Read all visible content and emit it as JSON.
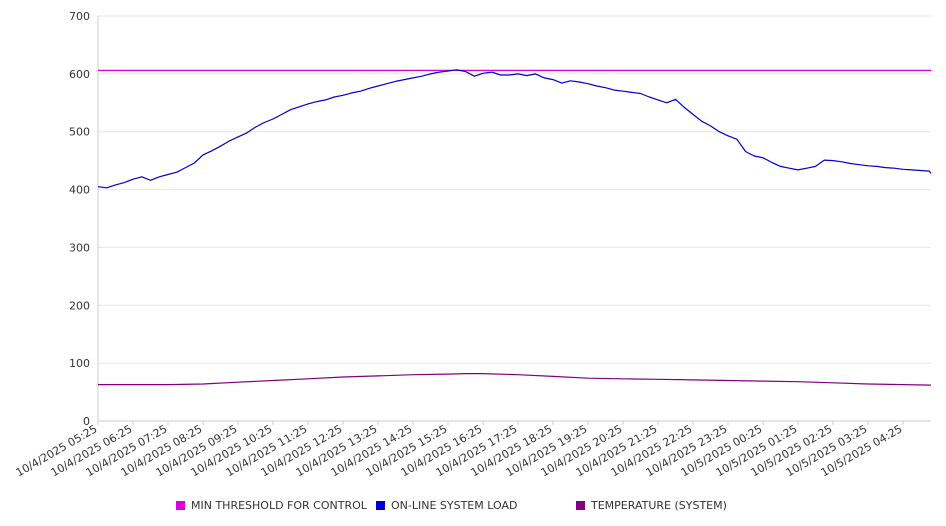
{
  "chart_data": {
    "type": "line",
    "title": "",
    "xlabel": "",
    "ylabel": "",
    "ylim": [
      0,
      700
    ],
    "yticks": [
      0,
      100,
      200,
      300,
      400,
      500,
      600,
      700
    ],
    "grid": true,
    "legend_position": "bottom",
    "x_tick_labels": [
      "10/4/2025 05:25",
      "10/4/2025 06:25",
      "10/4/2025 07:25",
      "10/4/2025 08:25",
      "10/4/2025 09:25",
      "10/4/2025 10:25",
      "10/4/2025 11:25",
      "10/4/2025 12:25",
      "10/4/2025 13:25",
      "10/4/2025 14:25",
      "10/4/2025 15:25",
      "10/4/2025 16:25",
      "10/4/2025 17:25",
      "10/4/2025 18:25",
      "10/4/2025 19:25",
      "10/4/2025 20:25",
      "10/4/2025 21:25",
      "10/4/2025 22:25",
      "10/4/2025 23:25",
      "10/5/2025 00:25",
      "10/5/2025 01:25",
      "10/5/2025 02:25",
      "10/5/2025 03:25",
      "10/5/2025 04:25"
    ],
    "x_tick_hours": [
      0,
      1,
      2,
      3,
      4,
      5,
      6,
      7,
      8,
      9,
      10,
      11,
      12,
      13,
      14,
      15,
      16,
      17,
      18,
      19,
      20,
      21,
      22,
      23
    ],
    "x_end_hour": 23.8,
    "series": [
      {
        "name": "MIN THRESHOLD FOR CONTROL",
        "color": "#dd00dd",
        "x_hours": [
          0,
          23.8
        ],
        "values": [
          606,
          606
        ]
      },
      {
        "name": "ON-LINE SYSTEM LOAD",
        "color": "#0000cc",
        "x_hours": [
          0,
          0.25,
          0.5,
          0.75,
          1,
          1.25,
          1.5,
          1.75,
          2,
          2.25,
          2.5,
          2.75,
          3,
          3.25,
          3.5,
          3.75,
          4,
          4.25,
          4.5,
          4.75,
          5,
          5.25,
          5.5,
          5.75,
          6,
          6.25,
          6.5,
          6.75,
          7,
          7.25,
          7.5,
          7.75,
          8,
          8.25,
          8.5,
          8.75,
          9,
          9.25,
          9.5,
          9.75,
          10,
          10.25,
          10.5,
          10.75,
          11,
          11.25,
          11.5,
          11.75,
          12,
          12.25,
          12.5,
          12.75,
          13,
          13.25,
          13.5,
          13.75,
          14,
          14.25,
          14.5,
          14.75,
          15,
          15.25,
          15.5,
          15.75,
          16,
          16.25,
          16.5,
          16.75,
          17,
          17.25,
          17.5,
          17.75,
          18,
          18.25,
          18.5,
          18.55,
          18.75,
          19,
          19.25,
          19.5,
          19.75,
          20,
          20.25,
          20.5,
          20.75,
          21,
          21.25,
          21.5,
          21.75,
          22,
          22.25,
          22.5,
          22.75,
          23,
          23.25,
          23.5,
          23.75,
          23.8
        ],
        "values": [
          405,
          403,
          408,
          412,
          418,
          422,
          416,
          422,
          426,
          430,
          438,
          446,
          460,
          467,
          475,
          484,
          491,
          498,
          508,
          516,
          522,
          530,
          538,
          543,
          548,
          552,
          555,
          560,
          563,
          567,
          570,
          575,
          579,
          583,
          587,
          590,
          593,
          596,
          600,
          603,
          605,
          607,
          604,
          596,
          601,
          603,
          598,
          598,
          600,
          597,
          600,
          593,
          590,
          584,
          588,
          586,
          583,
          579,
          576,
          572,
          570,
          568,
          566,
          560,
          555,
          550,
          556,
          542,
          530,
          518,
          510,
          500,
          493,
          487,
          466,
          464,
          458,
          455,
          447,
          440,
          437,
          434,
          437,
          440,
          451,
          450,
          448,
          445,
          443,
          441,
          440,
          438,
          437,
          435,
          434,
          433,
          432,
          428
        ]
      },
      {
        "name": "TEMPERATURE (SYSTEM)",
        "color": "#800080",
        "x_hours": [
          0,
          1,
          2,
          3,
          4,
          5,
          6,
          7,
          8,
          9,
          10,
          10.5,
          11,
          12,
          13,
          14,
          15,
          16,
          17,
          18,
          19,
          20,
          21,
          22,
          23,
          23.8
        ],
        "values": [
          63,
          63,
          63,
          64,
          67,
          70,
          73,
          76,
          78,
          80,
          81,
          82,
          82,
          80,
          77,
          74,
          73,
          72,
          71,
          70,
          69,
          68,
          66,
          64,
          63,
          62
        ]
      }
    ]
  }
}
